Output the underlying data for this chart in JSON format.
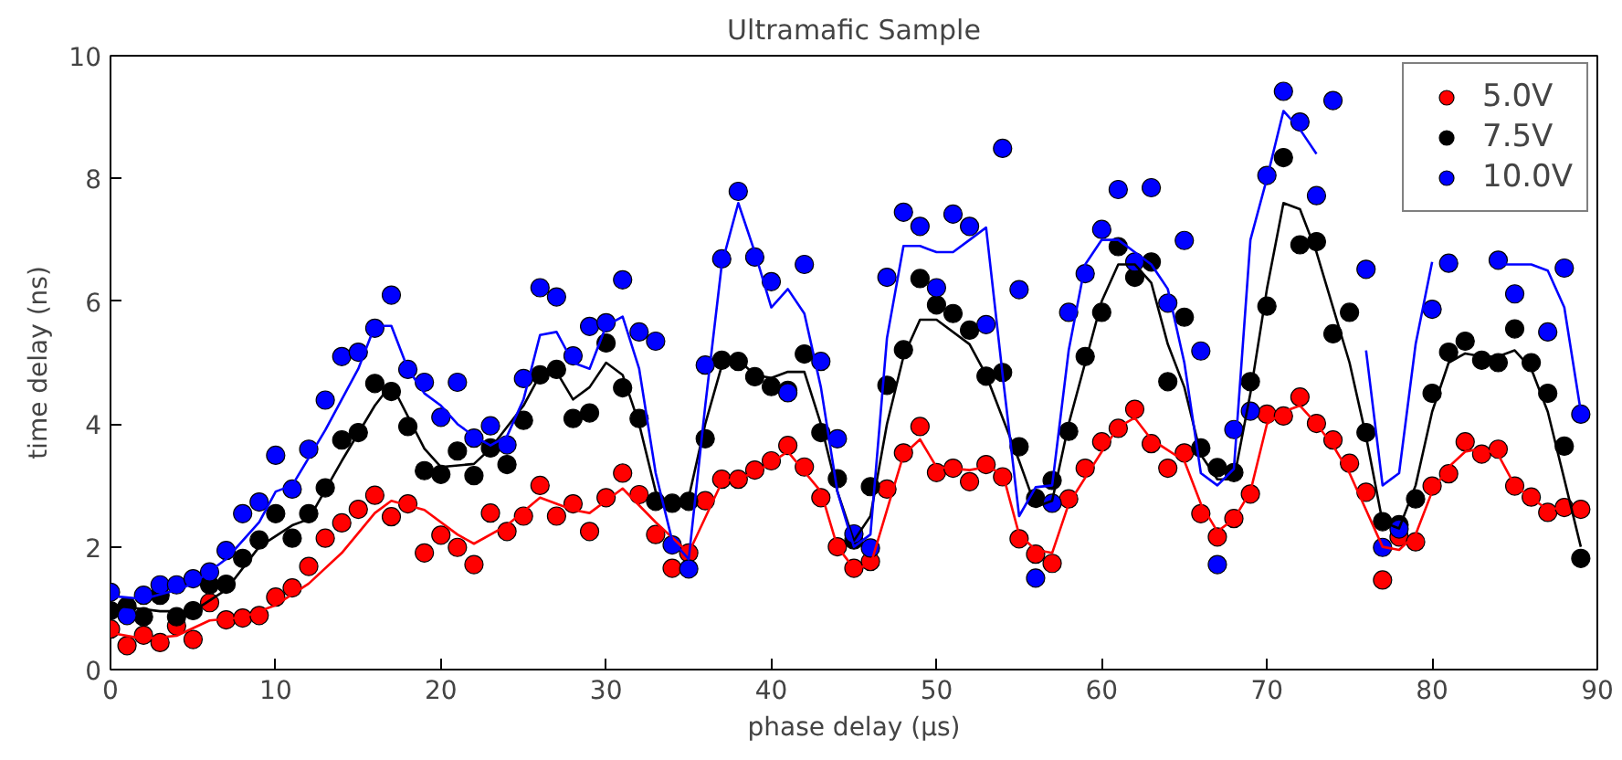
{
  "chart_data": {
    "type": "scatter",
    "title": "Ultramafic Sample",
    "xlabel": "phase delay (μs)",
    "ylabel": "time delay (ns)",
    "x": [
      0,
      1,
      2,
      3,
      4,
      5,
      6,
      7,
      8,
      9,
      10,
      11,
      12,
      13,
      14,
      15,
      16,
      17,
      18,
      19,
      20,
      21,
      22,
      23,
      24,
      25,
      26,
      27,
      28,
      29,
      30,
      31,
      32,
      33,
      34,
      35,
      36,
      37,
      38,
      39,
      40,
      41,
      42,
      43,
      44,
      45,
      46,
      47,
      48,
      49,
      50,
      51,
      52,
      53,
      54,
      55,
      56,
      57,
      58,
      59,
      60,
      61,
      62,
      63,
      64,
      65,
      66,
      67,
      68,
      69,
      70,
      71,
      72,
      73,
      74,
      75,
      76,
      77,
      78,
      79,
      80,
      81,
      82,
      83,
      84,
      85,
      86,
      87,
      88,
      89
    ],
    "xlim": [
      0,
      90
    ],
    "ylim": [
      0,
      10
    ],
    "xticks": [
      0,
      10,
      20,
      30,
      40,
      50,
      60,
      70,
      80,
      90
    ],
    "yticks": [
      0,
      2,
      4,
      6,
      8,
      10
    ],
    "grid": false,
    "legend": "top right",
    "marker": "circle",
    "series": [
      {
        "name": "5.0V",
        "color": "#ff0000",
        "values": [
          0.66,
          0.39,
          0.56,
          0.44,
          0.71,
          0.49,
          1.09,
          0.81,
          0.84,
          0.88,
          1.18,
          1.33,
          1.68,
          2.14,
          2.39,
          2.61,
          2.84,
          2.49,
          2.7,
          1.9,
          2.19,
          1.99,
          1.71,
          2.55,
          2.25,
          2.5,
          3.0,
          2.5,
          2.7,
          2.25,
          2.8,
          3.2,
          2.85,
          2.2,
          1.65,
          1.9,
          2.75,
          3.1,
          3.1,
          3.25,
          3.4,
          3.65,
          3.3,
          2.8,
          2.0,
          1.65,
          1.76,
          2.94,
          3.53,
          3.96,
          3.21,
          3.28,
          3.06,
          3.34,
          3.14,
          2.13,
          1.88,
          1.73,
          2.78,
          3.28,
          3.71,
          3.93,
          4.24,
          3.68,
          3.28,
          3.53,
          2.54,
          2.16,
          2.46,
          2.86,
          4.16,
          4.13,
          4.44,
          4.01,
          3.74,
          3.36,
          2.89,
          1.46,
          2.16,
          2.08,
          2.99,
          3.19,
          3.71,
          3.51,
          3.59,
          2.99,
          2.81,
          2.56,
          2.64,
          2.61
        ]
      },
      {
        "name": "7.5V",
        "color": "#000000",
        "values": [
          0.96,
          1.03,
          0.86,
          1.21,
          0.86,
          0.96,
          1.38,
          1.39,
          1.81,
          2.11,
          2.54,
          2.14,
          2.54,
          2.96,
          3.74,
          3.86,
          4.66,
          4.53,
          3.96,
          3.24,
          3.18,
          3.56,
          3.16,
          3.61,
          3.34,
          4.06,
          4.8,
          4.89,
          4.09,
          4.18,
          5.32,
          4.59,
          4.09,
          2.74,
          2.71,
          2.74,
          3.76,
          5.04,
          5.02,
          4.77,
          4.61,
          4.55,
          5.14,
          3.86,
          3.11,
          2.11,
          2.98,
          4.63,
          5.21,
          6.37,
          5.94,
          5.8,
          5.53,
          4.78,
          4.84,
          3.63,
          2.79,
          3.08,
          3.88,
          5.1,
          5.82,
          6.89,
          6.39,
          6.64,
          4.69,
          5.74,
          3.61,
          3.29,
          3.21,
          4.69,
          5.92,
          8.34,
          6.92,
          6.97,
          5.47,
          5.82,
          3.86,
          2.41,
          2.36,
          2.78,
          4.5,
          5.17,
          5.35,
          5.04,
          5.0,
          5.55,
          5.0,
          4.5,
          3.64,
          1.81
        ]
      },
      {
        "name": "10.0V",
        "color": "#0000ff",
        "values": [
          1.26,
          0.88,
          1.21,
          1.38,
          1.38,
          1.48,
          1.59,
          1.94,
          2.54,
          2.73,
          3.49,
          2.94,
          3.59,
          4.39,
          5.1,
          5.17,
          5.56,
          6.1,
          4.89,
          4.68,
          4.11,
          4.68,
          3.77,
          3.97,
          3.66,
          4.74,
          6.22,
          6.07,
          5.11,
          5.59,
          5.65,
          6.35,
          5.5,
          5.35,
          2.03,
          1.64,
          4.96,
          6.69,
          7.79,
          6.72,
          6.32,
          4.51,
          6.6,
          5.02,
          3.76,
          2.21,
          1.98,
          6.39,
          7.45,
          7.22,
          6.22,
          7.42,
          7.22,
          5.62,
          8.49,
          6.19,
          1.49,
          2.71,
          5.82,
          6.45,
          7.17,
          7.82,
          6.64,
          7.85,
          5.97,
          6.99,
          5.19,
          1.71,
          3.91,
          4.21,
          8.05,
          9.42,
          8.92,
          7.72,
          9.27,
          null,
          6.52,
          1.99,
          2.29,
          null,
          5.87,
          6.62,
          null,
          null,
          6.67,
          6.12,
          null,
          5.5,
          6.54,
          4.16
        ]
      },
      {
        "type": "line",
        "marker": "none",
        "color": "#ff0000",
        "x": [
          0,
          2,
          4,
          6,
          8,
          10,
          12,
          14,
          16,
          17,
          19,
          21,
          22,
          24,
          26,
          28,
          29,
          31,
          33,
          35,
          37,
          39,
          41,
          43,
          44,
          45,
          46,
          47,
          48,
          49,
          50,
          52,
          53,
          54,
          55,
          56,
          57,
          58,
          60,
          61,
          62,
          63,
          65,
          66,
          67,
          68,
          69,
          70,
          71,
          72,
          73,
          74,
          75,
          76,
          77,
          78,
          79,
          80,
          81,
          82,
          83,
          84,
          85,
          86,
          87,
          88,
          89
        ],
        "values": [
          0.6,
          0.5,
          0.55,
          0.8,
          0.85,
          1.05,
          1.4,
          1.9,
          2.55,
          2.75,
          2.6,
          2.2,
          2.05,
          2.35,
          2.8,
          2.6,
          2.55,
          2.95,
          2.4,
          1.9,
          3.05,
          3.2,
          3.55,
          2.9,
          2.0,
          1.65,
          1.7,
          2.6,
          3.5,
          3.75,
          3.3,
          3.25,
          3.3,
          3.2,
          2.2,
          1.95,
          1.9,
          2.7,
          3.55,
          3.95,
          4.1,
          3.75,
          3.4,
          2.7,
          2.25,
          2.45,
          2.9,
          4.0,
          4.2,
          4.3,
          4.0,
          3.65,
          3.2,
          2.6,
          2.0,
          1.95,
          2.2,
          2.9,
          3.3,
          3.55,
          3.6,
          3.5,
          3.0,
          2.8,
          2.6,
          2.65,
          2.6
        ]
      },
      {
        "type": "line",
        "marker": "none",
        "color": "#000000",
        "x": [
          0,
          3,
          5,
          7,
          9,
          11,
          12,
          14,
          16,
          17,
          19,
          20,
          22,
          23,
          25,
          26,
          27,
          28,
          29,
          30,
          31,
          32,
          33,
          34,
          35,
          36,
          37,
          38,
          39,
          40,
          41,
          42,
          43,
          44,
          45,
          46,
          47,
          48,
          49,
          50,
          52,
          53,
          54,
          55,
          56,
          57,
          58,
          59,
          60,
          61,
          62,
          63,
          64,
          65,
          66,
          67,
          68,
          69,
          70,
          71,
          72,
          73,
          74,
          75,
          76,
          77,
          78,
          79,
          80,
          81,
          82,
          83,
          84,
          85,
          86,
          87,
          88,
          89
        ],
        "values": [
          1.05,
          0.95,
          0.95,
          1.3,
          2.0,
          2.35,
          2.45,
          3.4,
          4.3,
          4.65,
          3.6,
          3.3,
          3.35,
          3.6,
          4.3,
          4.8,
          4.85,
          4.4,
          4.6,
          5.0,
          4.8,
          4.0,
          2.9,
          2.65,
          2.8,
          4.0,
          4.95,
          5.05,
          4.8,
          4.75,
          4.85,
          4.85,
          4.0,
          2.9,
          2.1,
          2.5,
          4.0,
          5.1,
          5.7,
          5.7,
          5.3,
          4.8,
          4.1,
          3.4,
          2.65,
          2.75,
          4.0,
          5.0,
          6.0,
          6.6,
          6.6,
          6.3,
          5.3,
          4.6,
          3.5,
          3.1,
          3.1,
          4.5,
          6.2,
          7.6,
          7.5,
          6.8,
          5.9,
          5.0,
          3.8,
          2.4,
          2.3,
          3.0,
          4.2,
          5.0,
          5.15,
          5.1,
          5.1,
          5.2,
          4.9,
          4.2,
          3.1,
          2.0
        ]
      },
      {
        "type": "line",
        "marker": "none",
        "color": "#0000ff",
        "x": [
          0,
          2,
          4,
          5,
          7,
          9,
          10,
          11,
          13,
          15,
          16,
          17,
          18,
          19,
          20,
          21,
          22,
          23,
          24,
          25,
          26,
          27,
          28,
          29,
          30,
          31,
          32,
          33,
          34,
          35,
          36,
          37,
          38,
          39,
          40,
          41,
          42,
          43,
          44,
          45,
          46,
          47,
          48,
          49,
          50,
          51,
          52,
          53,
          54,
          55,
          56,
          57,
          58,
          59,
          60,
          61,
          62,
          63,
          64,
          65,
          66,
          67,
          68,
          69,
          70,
          71,
          72,
          73,
          74,
          75,
          76,
          77,
          78,
          79,
          80,
          81,
          82,
          83,
          84,
          85,
          86,
          87,
          88,
          89
        ],
        "values": [
          1.2,
          1.15,
          1.3,
          1.4,
          1.8,
          2.4,
          2.9,
          3.0,
          3.9,
          4.9,
          5.6,
          5.6,
          4.9,
          4.5,
          4.3,
          4.0,
          3.8,
          3.65,
          3.8,
          4.4,
          5.45,
          5.5,
          5.0,
          4.9,
          5.6,
          5.75,
          4.9,
          3.2,
          2.1,
          1.8,
          4.3,
          6.6,
          7.6,
          6.8,
          5.9,
          6.2,
          5.8,
          4.6,
          2.9,
          2.0,
          2.2,
          5.4,
          6.9,
          6.9,
          6.8,
          6.8,
          7.0,
          7.2,
          4.8,
          2.5,
          2.97,
          3.0,
          5.2,
          6.6,
          7.0,
          7.0,
          6.8,
          6.6,
          6.2,
          5.0,
          3.2,
          3.0,
          3.27,
          7.0,
          8.0,
          9.1,
          8.8,
          8.4,
          null,
          null,
          5.2,
          3.0,
          3.2,
          5.3,
          6.64,
          null,
          null,
          null,
          6.6,
          6.6,
          6.6,
          6.5,
          5.9,
          4.2
        ]
      }
    ]
  }
}
